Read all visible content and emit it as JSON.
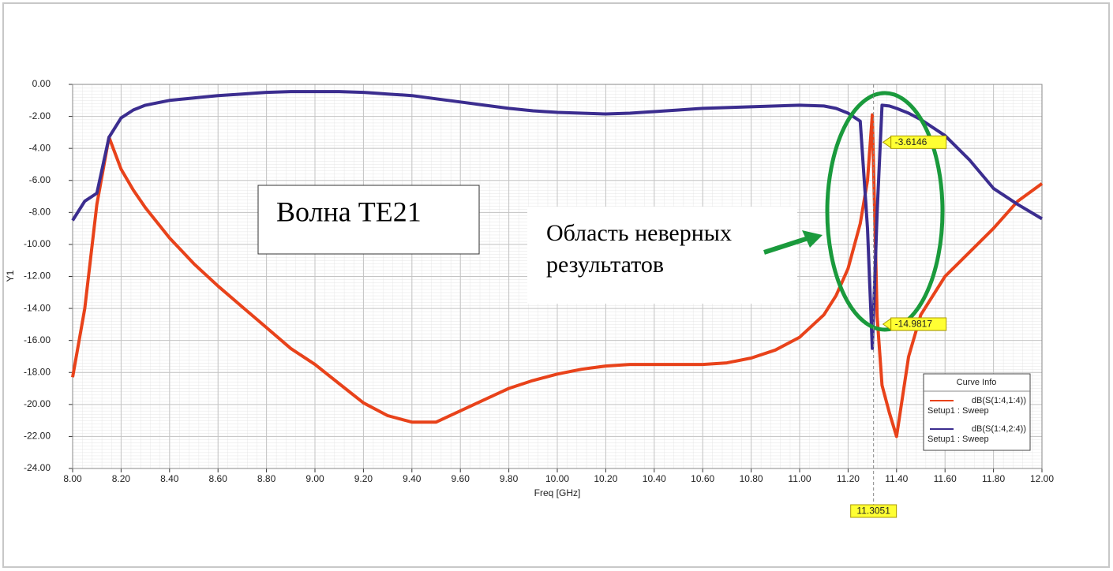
{
  "chart_data": {
    "type": "line",
    "x_label": "Freq [GHz]",
    "y_label": "Y1",
    "x": [
      8.0,
      8.05,
      8.1,
      8.15,
      8.2,
      8.25,
      8.3,
      8.4,
      8.5,
      8.6,
      8.7,
      8.8,
      8.9,
      9.0,
      9.1,
      9.2,
      9.3,
      9.4,
      9.5,
      9.6,
      9.7,
      9.8,
      9.9,
      10.0,
      10.1,
      10.2,
      10.3,
      10.4,
      10.5,
      10.6,
      10.7,
      10.8,
      10.9,
      11.0,
      11.1,
      11.15,
      11.2,
      11.25,
      11.28,
      11.3,
      11.32,
      11.34,
      11.37,
      11.4,
      11.45,
      11.5,
      11.6,
      11.7,
      11.8,
      11.9,
      12.0
    ],
    "series": [
      {
        "name": "dB(S(1:4,1:4))",
        "setup": "Setup1 : Sweep",
        "color": "#e8421a",
        "values": [
          -18.3,
          -14.0,
          -7.5,
          -3.3,
          -5.3,
          -6.6,
          -7.7,
          -9.6,
          -11.2,
          -12.6,
          -13.9,
          -15.2,
          -16.5,
          -17.5,
          -18.7,
          -19.9,
          -20.7,
          -21.1,
          -21.1,
          -20.4,
          -19.7,
          -19.0,
          -18.5,
          -18.1,
          -17.8,
          -17.6,
          -17.5,
          -17.5,
          -17.5,
          -17.5,
          -17.4,
          -17.1,
          -16.6,
          -15.8,
          -14.4,
          -13.2,
          -11.5,
          -8.7,
          -6.0,
          -1.9,
          -14.5,
          -18.8,
          -20.5,
          -22.0,
          -17.0,
          -14.4,
          -12.0,
          -10.5,
          -9.0,
          -7.3,
          -6.2
        ]
      },
      {
        "name": "dB(S(1:4,2:4))",
        "setup": "Setup1 : Sweep",
        "color": "#3b2d8f",
        "values": [
          -8.5,
          -7.3,
          -6.8,
          -3.3,
          -2.1,
          -1.6,
          -1.3,
          -1.0,
          -0.85,
          -0.7,
          -0.6,
          -0.5,
          -0.45,
          -0.45,
          -0.45,
          -0.5,
          -0.6,
          -0.7,
          -0.9,
          -1.1,
          -1.3,
          -1.5,
          -1.65,
          -1.75,
          -1.8,
          -1.85,
          -1.8,
          -1.7,
          -1.6,
          -1.5,
          -1.45,
          -1.4,
          -1.35,
          -1.3,
          -1.35,
          -1.5,
          -1.8,
          -2.3,
          -9.0,
          -16.5,
          -8.0,
          -1.3,
          -1.35,
          -1.5,
          -1.8,
          -2.2,
          -3.2,
          -4.7,
          -6.5,
          -7.5,
          -8.4
        ]
      }
    ],
    "xlim": [
      8,
      12
    ],
    "xticks": [
      {
        "value": 8,
        "label": "8.00"
      },
      {
        "value": 8.2,
        "label": "8.20"
      },
      {
        "value": 8.4,
        "label": "8.40"
      },
      {
        "value": 8.6,
        "label": "8.60"
      },
      {
        "value": 8.8,
        "label": "8.80"
      },
      {
        "value": 9,
        "label": "9.00"
      },
      {
        "value": 9.2,
        "label": "9.20"
      },
      {
        "value": 9.4,
        "label": "9.40"
      },
      {
        "value": 9.6,
        "label": "9.60"
      },
      {
        "value": 9.8,
        "label": "9.80"
      },
      {
        "value": 10,
        "label": "10.00"
      },
      {
        "value": 10.2,
        "label": "10.20"
      },
      {
        "value": 10.4,
        "label": "10.40"
      },
      {
        "value": 10.6,
        "label": "10.60"
      },
      {
        "value": 10.8,
        "label": "10.80"
      },
      {
        "value": 11,
        "label": "11.00"
      },
      {
        "value": 11.2,
        "label": "11.20"
      },
      {
        "value": 11.4,
        "label": "11.40"
      },
      {
        "value": 11.6,
        "label": "11.60"
      },
      {
        "value": 11.8,
        "label": "11.80"
      },
      {
        "value": 12,
        "label": "12.00"
      }
    ],
    "ylim": [
      -24,
      0
    ],
    "yticks": [
      {
        "value": 0,
        "label": "0.00"
      },
      {
        "value": -2,
        "label": "-2.00"
      },
      {
        "value": -4,
        "label": "-4.00"
      },
      {
        "value": -6,
        "label": "-6.00"
      },
      {
        "value": -8,
        "label": "-8.00"
      },
      {
        "value": -10,
        "label": "-10.00"
      },
      {
        "value": -12,
        "label": "-12.00"
      },
      {
        "value": -14,
        "label": "-14.00"
      },
      {
        "value": -16,
        "label": "-16.00"
      },
      {
        "value": -18,
        "label": "-18.00"
      },
      {
        "value": -20,
        "label": "-20.00"
      },
      {
        "value": -22,
        "label": "-22.00"
      },
      {
        "value": -24,
        "label": "-24.00"
      }
    ],
    "grid": true,
    "legend": {
      "title": "Curve Info",
      "position": "lower right"
    },
    "marker": {
      "x": 11.3051,
      "y": [
        -3.6146,
        -14.9817
      ]
    },
    "annotations": {
      "mode": "Волна TE21",
      "region": [
        "Область неверных",
        "результатов"
      ]
    }
  }
}
